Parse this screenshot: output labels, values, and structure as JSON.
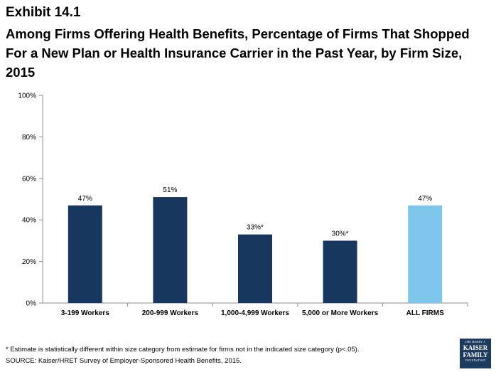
{
  "exhibit": "Exhibit 14.1",
  "title": "Among Firms Offering Health Benefits, Percentage of Firms That Shopped For a New Plan or Health Insurance Carrier in the Past Year, by Firm Size, 2015",
  "chart_data": {
    "type": "bar",
    "categories": [
      "3-199 Workers",
      "200-999 Workers",
      "1,000-4,999 Workers",
      "5,000 or More Workers",
      "ALL FIRMS"
    ],
    "values": [
      47,
      51,
      33,
      30,
      47
    ],
    "data_labels": [
      "47%",
      "51%",
      "33%*",
      "30%*",
      "47%"
    ],
    "ylim": [
      0,
      100
    ],
    "yticks": [
      0,
      20,
      40,
      60,
      80,
      100
    ],
    "ytick_labels": [
      "0%",
      "20%",
      "40%",
      "60%",
      "80%",
      "100%"
    ],
    "grid": false,
    "colors": [
      "#17375e",
      "#17375e",
      "#17375e",
      "#17375e",
      "#7ec6ec"
    ]
  },
  "footnote": "* Estimate is statistically different within size category from estimate for firms not in the indicated size category (p<.05).",
  "source": "SOURCE: Kaiser/HRET Survey of Employer-Sponsored Health Benefits, 2015.",
  "logo": {
    "line1": "THE HENRY J.",
    "line2": "KAISER",
    "line3": "FAMILY",
    "line4": "FOUNDATION"
  }
}
